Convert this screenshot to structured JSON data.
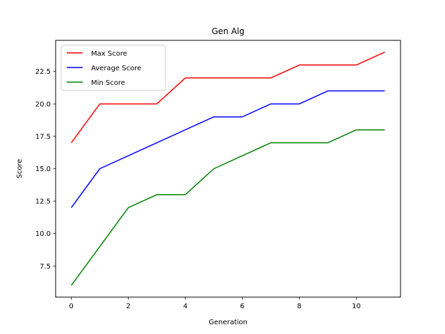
{
  "chart_data": {
    "type": "line",
    "title": "Gen Alg",
    "xlabel": "Generation",
    "ylabel": "Score",
    "x": [
      0,
      1,
      2,
      3,
      4,
      5,
      6,
      7,
      8,
      9,
      10,
      11
    ],
    "xlim": [
      -0.55,
      11.55
    ],
    "ylim": [
      5.1,
      24.9
    ],
    "xticks": [
      0,
      2,
      4,
      6,
      8,
      10
    ],
    "xtick_labels": [
      "0",
      "2",
      "4",
      "6",
      "8",
      "10"
    ],
    "yticks": [
      7.5,
      10.0,
      12.5,
      15.0,
      17.5,
      20.0,
      22.5
    ],
    "ytick_labels": [
      "7.5",
      "10.0",
      "12.5",
      "15.0",
      "17.5",
      "20.0",
      "22.5"
    ],
    "grid": false,
    "legend_position": "upper-left",
    "series": [
      {
        "name": "Max Score",
        "color": "#ff0000",
        "values": [
          17,
          20,
          20,
          20,
          22,
          22,
          22,
          22,
          23,
          23,
          23,
          24
        ]
      },
      {
        "name": "Average Score",
        "color": "#0000ff",
        "values": [
          12,
          15,
          16,
          17,
          18,
          19,
          19,
          20,
          20,
          21,
          21,
          21
        ]
      },
      {
        "name": "Min Score",
        "color": "#008000",
        "values": [
          6,
          9,
          12,
          13,
          13,
          15,
          16,
          17,
          17,
          17,
          18,
          18
        ]
      }
    ]
  }
}
